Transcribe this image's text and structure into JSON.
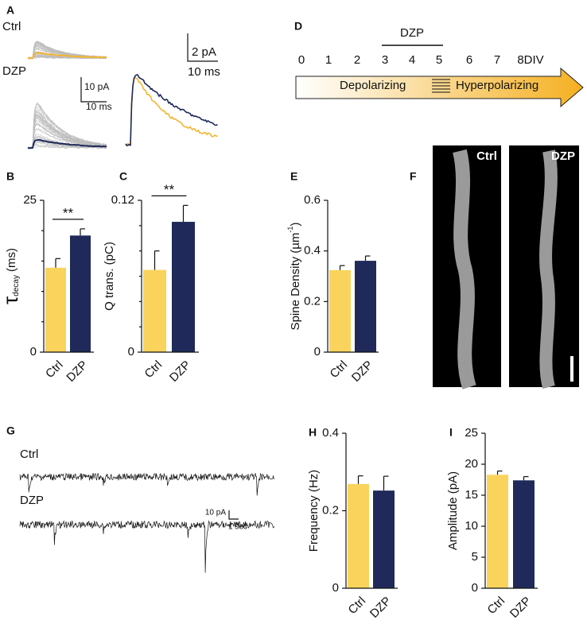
{
  "panel_labels": [
    "A",
    "B",
    "C",
    "D",
    "E",
    "F",
    "G",
    "H",
    "I"
  ],
  "panel_a": {
    "groups": [
      "Ctrl",
      "DZP"
    ],
    "scale_left": [
      "10 pA",
      "10 ms"
    ],
    "scale_right": [
      "2 pA",
      "10 ms"
    ]
  },
  "panel_d": {
    "treatment": "DZP",
    "days": [
      "0",
      "1",
      "2",
      "3",
      "4",
      "5",
      "6",
      "7",
      "8DIV"
    ],
    "phases": [
      "Depolarizing",
      "Hyperpolarizing"
    ]
  },
  "panel_f": {
    "groups": [
      "Ctrl",
      "DZP"
    ]
  },
  "panel_g": {
    "groups": [
      "Ctrl",
      "DZP"
    ],
    "scale": [
      "10 pA",
      "1 sec"
    ]
  },
  "chart_data": [
    {
      "type": "bar",
      "ylabel": [
        "τ",
        "decay",
        "(ms)"
      ],
      "categories": [
        "Ctrl",
        "DZP"
      ],
      "values": [
        13.9,
        19.2
      ],
      "errors": [
        1.5,
        1.1
      ],
      "colors": [
        "#f9d35c",
        "#1f2a5a"
      ],
      "ylim": [
        0,
        25
      ],
      "yticks": [
        0,
        25
      ],
      "minor_yticks": [
        5,
        10,
        15,
        20
      ],
      "significance": "**"
    },
    {
      "type": "bar",
      "ylabel": [
        "Q trans. (pC)"
      ],
      "categories": [
        "Ctrl",
        "DZP"
      ],
      "values": [
        0.065,
        0.103
      ],
      "errors": [
        0.015,
        0.013
      ],
      "colors": [
        "#f9d35c",
        "#1f2a5a"
      ],
      "ylim": [
        0,
        0.12
      ],
      "yticks": [
        0,
        0.12
      ],
      "minor_yticks": [
        0.02,
        0.04,
        0.06,
        0.08,
        0.1
      ],
      "significance": "**"
    },
    {
      "type": "bar",
      "ylabel": [
        "Spine Density (µm",
        "-1",
        ")"
      ],
      "categories": [
        "Ctrl",
        "DZP"
      ],
      "values": [
        0.324,
        0.361
      ],
      "errors": [
        0.018,
        0.019
      ],
      "colors": [
        "#f9d35c",
        "#1f2a5a"
      ],
      "ylim": [
        0,
        0.6
      ],
      "yticks": [
        0,
        0.2,
        0.4,
        0.6
      ]
    },
    {
      "type": "bar",
      "ylabel": [
        "Frequency (Hz)"
      ],
      "categories": [
        "Ctrl",
        "DZP"
      ],
      "values": [
        0.269,
        0.252
      ],
      "errors": [
        0.021,
        0.037
      ],
      "colors": [
        "#f9d35c",
        "#1f2a5a"
      ],
      "ylim": [
        0,
        0.4
      ],
      "yticks": [
        0,
        0.2,
        0.4
      ]
    },
    {
      "type": "bar",
      "ylabel": [
        "Amplitude (pA)"
      ],
      "categories": [
        "Ctrl",
        "DZP"
      ],
      "values": [
        18.3,
        17.4
      ],
      "errors": [
        0.6,
        0.6
      ],
      "colors": [
        "#f9d35c",
        "#1f2a5a"
      ],
      "ylim": [
        0,
        25
      ],
      "yticks": [
        0,
        5,
        10,
        15,
        20,
        25
      ]
    }
  ]
}
